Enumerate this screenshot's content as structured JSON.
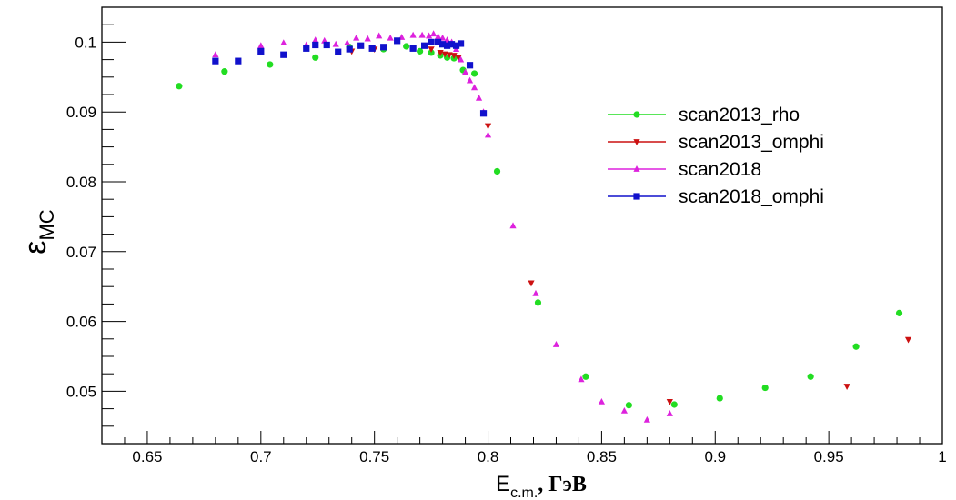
{
  "chart_data": {
    "type": "scatter",
    "xlabel": "E",
    "xlabel_sub": "c.m.",
    "xlabel_unit": ", ГэВ",
    "ylabel": "ε",
    "ylabel_sub": "MC",
    "xlim": [
      0.63,
      1.0
    ],
    "ylim": [
      0.0425,
      0.105
    ],
    "xticks": [
      {
        "value": 0.65,
        "label": "0.65"
      },
      {
        "value": 0.7,
        "label": "0.7"
      },
      {
        "value": 0.75,
        "label": "0.75"
      },
      {
        "value": 0.8,
        "label": "0.8"
      },
      {
        "value": 0.85,
        "label": "0.85"
      },
      {
        "value": 0.9,
        "label": "0.9"
      },
      {
        "value": 0.95,
        "label": "0.95"
      },
      {
        "value": 1.0,
        "label": "1"
      }
    ],
    "yticks": [
      {
        "value": 0.05,
        "label": "0.05"
      },
      {
        "value": 0.06,
        "label": "0.06"
      },
      {
        "value": 0.07,
        "label": "0.07"
      },
      {
        "value": 0.08,
        "label": "0.08"
      },
      {
        "value": 0.09,
        "label": "0.09"
      },
      {
        "value": 0.1,
        "label": "0.1"
      }
    ],
    "legend_position": "right",
    "series": [
      {
        "name": "scan2013_rho",
        "color": "#22dd22",
        "marker": "circle",
        "points": [
          [
            0.664,
            0.0937
          ],
          [
            0.684,
            0.0958
          ],
          [
            0.704,
            0.0968
          ],
          [
            0.724,
            0.0978
          ],
          [
            0.739,
            0.0993
          ],
          [
            0.754,
            0.099
          ],
          [
            0.764,
            0.0994
          ],
          [
            0.77,
            0.0987
          ],
          [
            0.775,
            0.0985
          ],
          [
            0.779,
            0.0981
          ],
          [
            0.782,
            0.0978
          ],
          [
            0.785,
            0.0977
          ],
          [
            0.789,
            0.096
          ],
          [
            0.794,
            0.0955
          ],
          [
            0.804,
            0.0815
          ],
          [
            0.822,
            0.0627
          ],
          [
            0.843,
            0.0521
          ],
          [
            0.862,
            0.048
          ],
          [
            0.882,
            0.0481
          ],
          [
            0.902,
            0.049
          ],
          [
            0.922,
            0.0505
          ],
          [
            0.942,
            0.0521
          ],
          [
            0.962,
            0.0564
          ],
          [
            0.981,
            0.0612
          ]
        ]
      },
      {
        "name": "scan2013_omphi",
        "color": "#cc1111",
        "marker": "triangle-down",
        "points": [
          [
            0.74,
            0.0987
          ],
          [
            0.75,
            0.099
          ],
          [
            0.775,
            0.099
          ],
          [
            0.779,
            0.0985
          ],
          [
            0.781,
            0.0983
          ],
          [
            0.783,
            0.0982
          ],
          [
            0.785,
            0.0981
          ],
          [
            0.787,
            0.0978
          ],
          [
            0.8,
            0.088
          ],
          [
            0.819,
            0.0655
          ],
          [
            0.88,
            0.0485
          ],
          [
            0.958,
            0.0507
          ],
          [
            0.985,
            0.0574
          ]
        ]
      },
      {
        "name": "scan2018",
        "color": "#dd22dd",
        "marker": "triangle-up",
        "points": [
          [
            0.68,
            0.0982
          ],
          [
            0.7,
            0.0995
          ],
          [
            0.71,
            0.0999
          ],
          [
            0.72,
            0.0996
          ],
          [
            0.724,
            0.1003
          ],
          [
            0.728,
            0.1002
          ],
          [
            0.733,
            0.0997
          ],
          [
            0.738,
            0.0999
          ],
          [
            0.742,
            0.1006
          ],
          [
            0.747,
            0.1005
          ],
          [
            0.752,
            0.1009
          ],
          [
            0.757,
            0.1006
          ],
          [
            0.762,
            0.1007
          ],
          [
            0.767,
            0.101
          ],
          [
            0.771,
            0.101
          ],
          [
            0.774,
            0.1009
          ],
          [
            0.776,
            0.1012
          ],
          [
            0.778,
            0.1008
          ],
          [
            0.78,
            0.1006
          ],
          [
            0.782,
            0.1003
          ],
          [
            0.784,
            0.1
          ],
          [
            0.786,
            0.099
          ],
          [
            0.788,
            0.0975
          ],
          [
            0.79,
            0.0957
          ],
          [
            0.792,
            0.0945
          ],
          [
            0.794,
            0.0935
          ],
          [
            0.796,
            0.092
          ],
          [
            0.798,
            0.09
          ],
          [
            0.8,
            0.0867
          ],
          [
            0.811,
            0.0737
          ],
          [
            0.821,
            0.064
          ],
          [
            0.83,
            0.0567
          ],
          [
            0.841,
            0.0517
          ],
          [
            0.85,
            0.0485
          ],
          [
            0.86,
            0.0472
          ],
          [
            0.87,
            0.0459
          ],
          [
            0.88,
            0.0468
          ]
        ]
      },
      {
        "name": "scan2018_omphi",
        "color": "#1111cc",
        "marker": "square",
        "points": [
          [
            0.68,
            0.0973
          ],
          [
            0.69,
            0.0973
          ],
          [
            0.7,
            0.0987
          ],
          [
            0.71,
            0.0982
          ],
          [
            0.72,
            0.0991
          ],
          [
            0.724,
            0.0996
          ],
          [
            0.729,
            0.0996
          ],
          [
            0.734,
            0.0986
          ],
          [
            0.739,
            0.099
          ],
          [
            0.744,
            0.0995
          ],
          [
            0.749,
            0.0991
          ],
          [
            0.754,
            0.0993
          ],
          [
            0.76,
            0.1002
          ],
          [
            0.767,
            0.0991
          ],
          [
            0.772,
            0.0995
          ],
          [
            0.775,
            0.1
          ],
          [
            0.778,
            0.1
          ],
          [
            0.78,
            0.0997
          ],
          [
            0.782,
            0.0995
          ],
          [
            0.784,
            0.0997
          ],
          [
            0.786,
            0.0995
          ],
          [
            0.788,
            0.0998
          ],
          [
            0.792,
            0.0967
          ],
          [
            0.798,
            0.0898
          ]
        ]
      }
    ]
  }
}
